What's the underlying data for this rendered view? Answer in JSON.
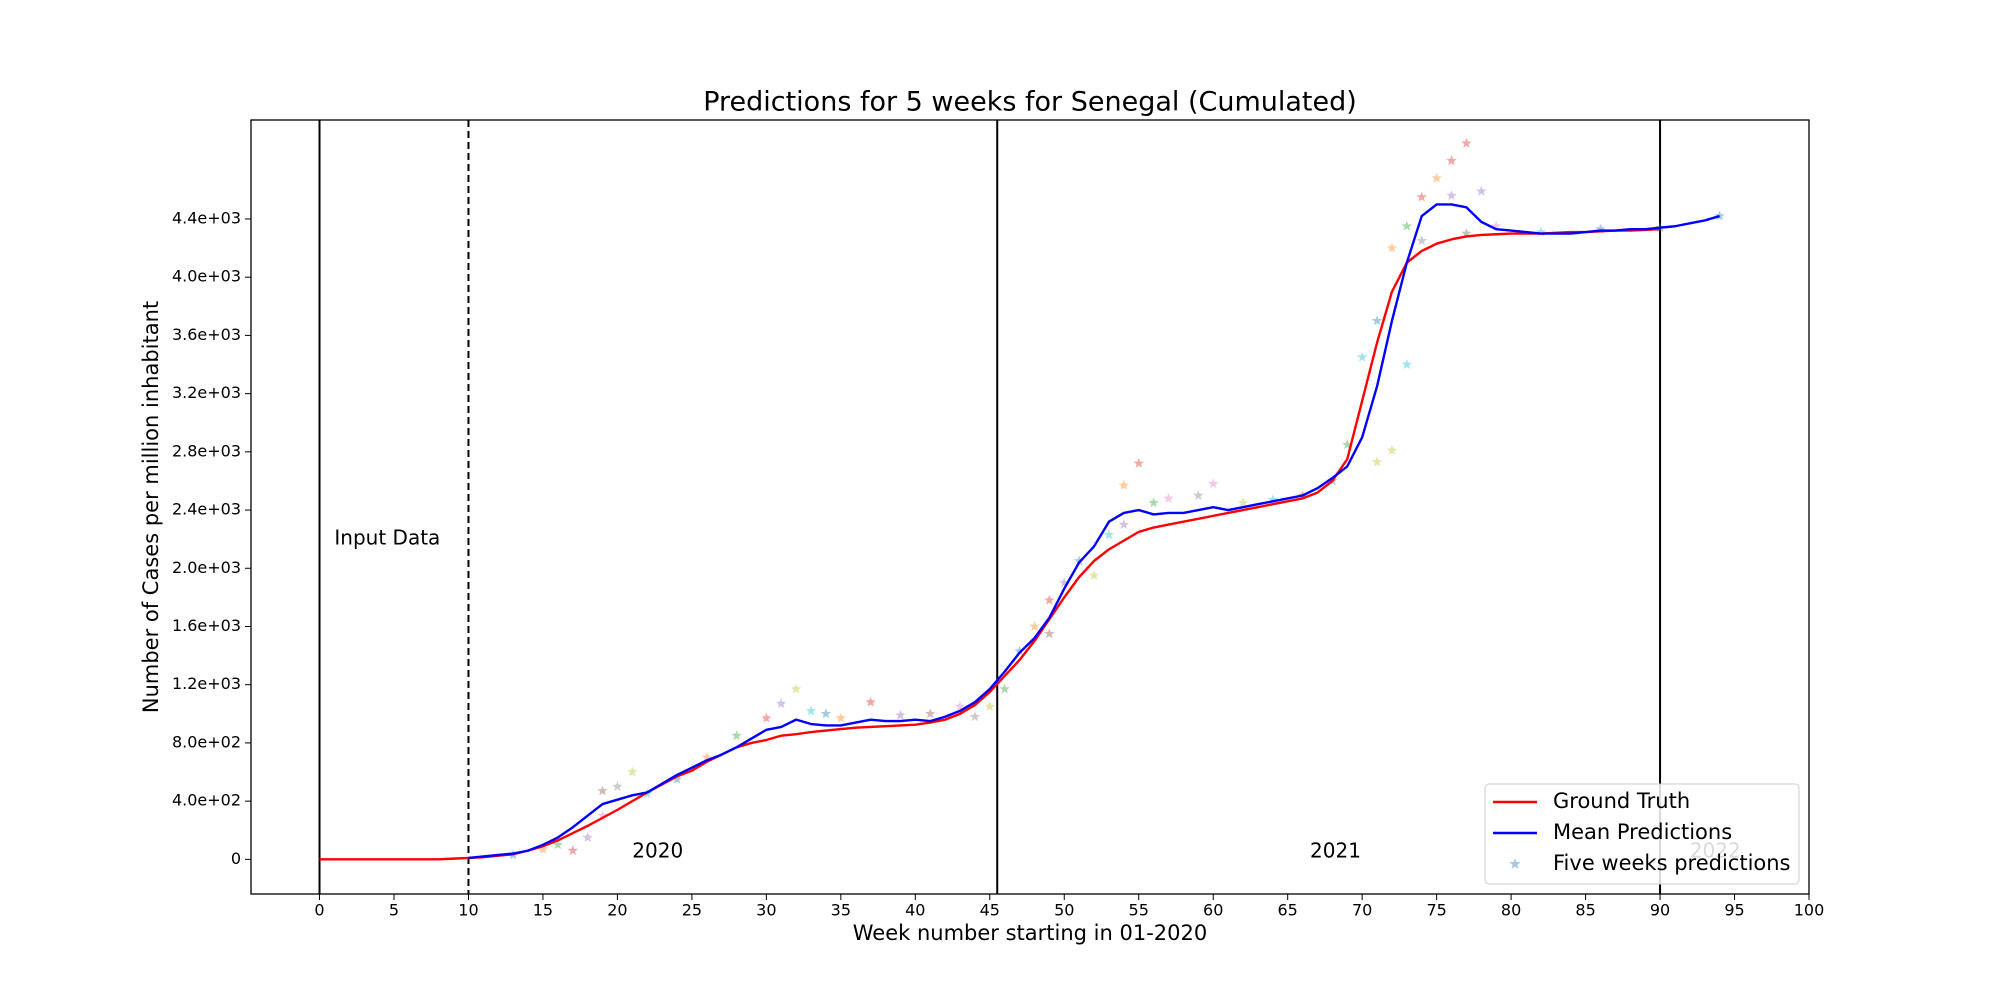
{
  "chart_data": {
    "type": "line",
    "title": "Predictions for 5 weeks for Senegal (Cumulated)",
    "x_label": "Week number starting in 01-2020",
    "y_label": "Number of Cases per million inhabitant",
    "xlim": [
      -4.6,
      100
    ],
    "ylim": [
      -238,
      5080
    ],
    "xticks": [
      0,
      5,
      10,
      15,
      20,
      25,
      30,
      35,
      40,
      45,
      50,
      55,
      60,
      65,
      70,
      75,
      80,
      85,
      90,
      95,
      100
    ],
    "yticks": [
      0,
      {
        "value": 400,
        "label": "4.0e+02"
      },
      {
        "value": 800,
        "label": "8.0e+02"
      },
      {
        "value": 1200,
        "label": "1.2e+03"
      },
      {
        "value": 1600,
        "label": "1.6e+03"
      },
      {
        "value": 2000,
        "label": "2.0e+03"
      },
      {
        "value": 2400,
        "label": "2.4e+03"
      },
      {
        "value": 2800,
        "label": "2.8e+03"
      },
      {
        "value": 3200,
        "label": "3.2e+03"
      },
      {
        "value": 3600,
        "label": "3.6e+03"
      },
      {
        "value": 4000,
        "label": "4.0e+03"
      },
      {
        "value": 4400,
        "label": "4.4e+03"
      }
    ],
    "legend": "lower right",
    "vlines": [
      {
        "x": 0,
        "style": "solid"
      },
      {
        "x": 10,
        "style": "dashed"
      },
      {
        "x": 45.5,
        "style": "solid"
      },
      {
        "x": 90,
        "style": "solid"
      }
    ],
    "annotations": [
      {
        "text": "Input Data",
        "x": 1,
        "y": 2200,
        "color": "#000000"
      },
      {
        "text": "2020",
        "x": 21,
        "y": 50,
        "color": "#000000"
      },
      {
        "text": "2021",
        "x": 66.5,
        "y": 50,
        "color": "#000000"
      },
      {
        "text": "2022",
        "x": 92,
        "y": 50,
        "color": "#bbbbbb"
      }
    ],
    "series": [
      {
        "name": "Ground Truth",
        "type": "line",
        "color": "#ff0000",
        "x": [
          0,
          1,
          2,
          3,
          4,
          5,
          6,
          7,
          8,
          9,
          10,
          11,
          12,
          13,
          14,
          15,
          16,
          17,
          18,
          19,
          20,
          21,
          22,
          23,
          24,
          25,
          26,
          27,
          28,
          29,
          30,
          31,
          32,
          33,
          34,
          35,
          36,
          37,
          38,
          39,
          40,
          41,
          42,
          43,
          44,
          45,
          46,
          47,
          48,
          49,
          50,
          51,
          52,
          53,
          54,
          55,
          56,
          57,
          58,
          59,
          60,
          61,
          62,
          63,
          64,
          65,
          66,
          67,
          68,
          69,
          70,
          71,
          72,
          73,
          74,
          75,
          76,
          77,
          78,
          79,
          80,
          81,
          82,
          83,
          84,
          85,
          86,
          87,
          88,
          89,
          90
        ],
        "values": [
          0,
          0,
          0,
          0,
          0,
          0,
          0,
          0,
          0,
          5,
          10,
          15,
          25,
          35,
          60,
          90,
          130,
          180,
          230,
          285,
          340,
          400,
          460,
          515,
          570,
          610,
          670,
          720,
          770,
          800,
          820,
          850,
          860,
          875,
          885,
          895,
          905,
          910,
          915,
          920,
          925,
          940,
          960,
          1000,
          1060,
          1150,
          1260,
          1370,
          1500,
          1650,
          1800,
          1940,
          2050,
          2130,
          2190,
          2250,
          2280,
          2300,
          2320,
          2340,
          2360,
          2380,
          2400,
          2420,
          2440,
          2460,
          2480,
          2520,
          2600,
          2750,
          3150,
          3550,
          3900,
          4100,
          4180,
          4230,
          4260,
          4280,
          4290,
          4295,
          4300,
          4300,
          4300,
          4305,
          4310,
          4310,
          4315,
          4320,
          4320,
          4325,
          4330
        ]
      },
      {
        "name": "Mean Predictions",
        "type": "line",
        "color": "#0000ff",
        "x": [
          10,
          11,
          12,
          13,
          14,
          15,
          16,
          17,
          18,
          19,
          20,
          21,
          22,
          23,
          24,
          25,
          26,
          27,
          28,
          29,
          30,
          31,
          32,
          33,
          34,
          35,
          36,
          37,
          38,
          39,
          40,
          41,
          42,
          43,
          44,
          45,
          46,
          47,
          48,
          49,
          50,
          51,
          52,
          53,
          54,
          55,
          56,
          57,
          58,
          59,
          60,
          61,
          62,
          63,
          64,
          65,
          66,
          67,
          68,
          69,
          70,
          71,
          72,
          73,
          74,
          75,
          76,
          77,
          78,
          79,
          80,
          81,
          82,
          83,
          84,
          85,
          86,
          87,
          88,
          89,
          90,
          91,
          92,
          93,
          94
        ],
        "values": [
          10,
          20,
          30,
          40,
          60,
          100,
          150,
          220,
          300,
          380,
          410,
          440,
          460,
          520,
          580,
          630,
          680,
          720,
          770,
          830,
          890,
          910,
          960,
          930,
          920,
          920,
          940,
          960,
          950,
          950,
          960,
          950,
          980,
          1020,
          1080,
          1170,
          1290,
          1420,
          1520,
          1660,
          1860,
          2040,
          2150,
          2320,
          2380,
          2400,
          2370,
          2380,
          2380,
          2400,
          2420,
          2400,
          2420,
          2440,
          2460,
          2480,
          2500,
          2550,
          2620,
          2700,
          2900,
          3250,
          3700,
          4100,
          4420,
          4500,
          4500,
          4480,
          4380,
          4330,
          4320,
          4310,
          4300,
          4300,
          4300,
          4310,
          4320,
          4320,
          4330,
          4330,
          4340,
          4350,
          4370,
          4390,
          4420
        ]
      },
      {
        "name": "Five weeks predictions",
        "type": "scatter",
        "color": "#1f77b4",
        "x": [
          13,
          15,
          16,
          17,
          18,
          19,
          19,
          20,
          21,
          22,
          24,
          26,
          28,
          30,
          31,
          32,
          33,
          34,
          35,
          37,
          39,
          41,
          43,
          44,
          45,
          46,
          47,
          48,
          49,
          49,
          50,
          51,
          52,
          53,
          54,
          54,
          55,
          56,
          57,
          59,
          60,
          62,
          64,
          66,
          68,
          69,
          70,
          71,
          71,
          72,
          72,
          73,
          73,
          74,
          74,
          75,
          76,
          76,
          77,
          77,
          78,
          79,
          82,
          86,
          90,
          94
        ],
        "values": [
          30,
          70,
          100,
          60,
          150,
          470,
          300,
          500,
          600,
          450,
          550,
          700,
          850,
          970,
          1070,
          1170,
          1020,
          1000,
          970,
          1080,
          990,
          1000,
          1050,
          980,
          1050,
          1170,
          1430,
          1600,
          1550,
          1780,
          1900,
          2050,
          1950,
          2230,
          2570,
          2300,
          2720,
          2450,
          2480,
          2500,
          2580,
          2450,
          2470,
          2500,
          2600,
          2850,
          3450,
          3700,
          2730,
          2810,
          4200,
          3400,
          4350,
          4550,
          4250,
          4680,
          4800,
          4560,
          4920,
          4300,
          4590,
          4350,
          4310,
          4330,
          4340,
          4420
        ],
        "colors": [
          "#1f77b4",
          "#ff7f0e",
          "#2ca02c",
          "#d62728",
          "#9467bd",
          "#8c564b",
          "#e377c2",
          "#7f7f7f",
          "#bcbd22",
          "#17becf",
          "#1f77b4",
          "#ff7f0e",
          "#2ca02c",
          "#d62728",
          "#9467bd",
          "#bcbd22",
          "#17becf",
          "#1f77b4",
          "#ff7f0e",
          "#d62728",
          "#9467bd",
          "#8c564b",
          "#e377c2",
          "#7f7f7f",
          "#bcbd22",
          "#2ca02c",
          "#1f77b4",
          "#ff7f0e",
          "#8c564b",
          "#d62728",
          "#9467bd",
          "#1f77b4",
          "#bcbd22",
          "#17becf",
          "#ff7f0e",
          "#9467bd",
          "#d62728",
          "#2ca02c",
          "#e377c2",
          "#7f7f7f",
          "#e377c2",
          "#bcbd22",
          "#17becf",
          "#8c564b",
          "#1f77b4",
          "#2ca02c",
          "#17becf",
          "#1f77b4",
          "#bcbd22",
          "#bcbd22",
          "#ff7f0e",
          "#17becf",
          "#2ca02c",
          "#d62728",
          "#7f7f7f",
          "#ff7f0e",
          "#d62728",
          "#9467bd",
          "#d62728",
          "#8c564b",
          "#9467bd",
          "#e377c2",
          "#17becf",
          "#1f77b4",
          "#2ca02c",
          "#1f77b4"
        ]
      }
    ]
  }
}
